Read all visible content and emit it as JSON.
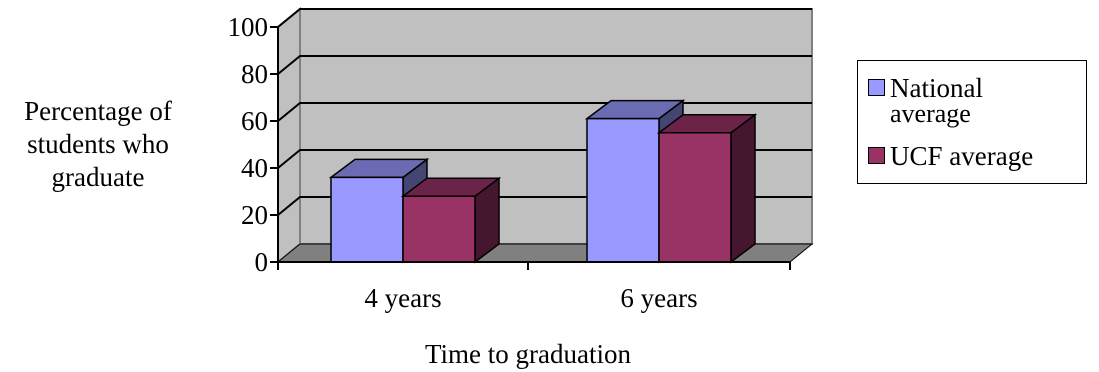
{
  "chart_data": {
    "type": "bar",
    "categories": [
      "4 years",
      "6 years"
    ],
    "series": [
      {
        "name": "National average",
        "values": [
          36,
          61
        ],
        "color": "#9999FF"
      },
      {
        "name": "UCF average",
        "values": [
          28,
          55
        ],
        "color": "#993366"
      }
    ],
    "ylim": [
      0,
      100
    ],
    "yticks": [
      0,
      20,
      40,
      60,
      80,
      100
    ],
    "xlabel": "Time to graduation",
    "ylabel_lines": [
      "Percentage of",
      "students who",
      "graduate"
    ],
    "legend_position": "right",
    "grid": true
  },
  "legend": {
    "national_line1": "National",
    "national_line2": "average",
    "ucf": "UCF average"
  }
}
